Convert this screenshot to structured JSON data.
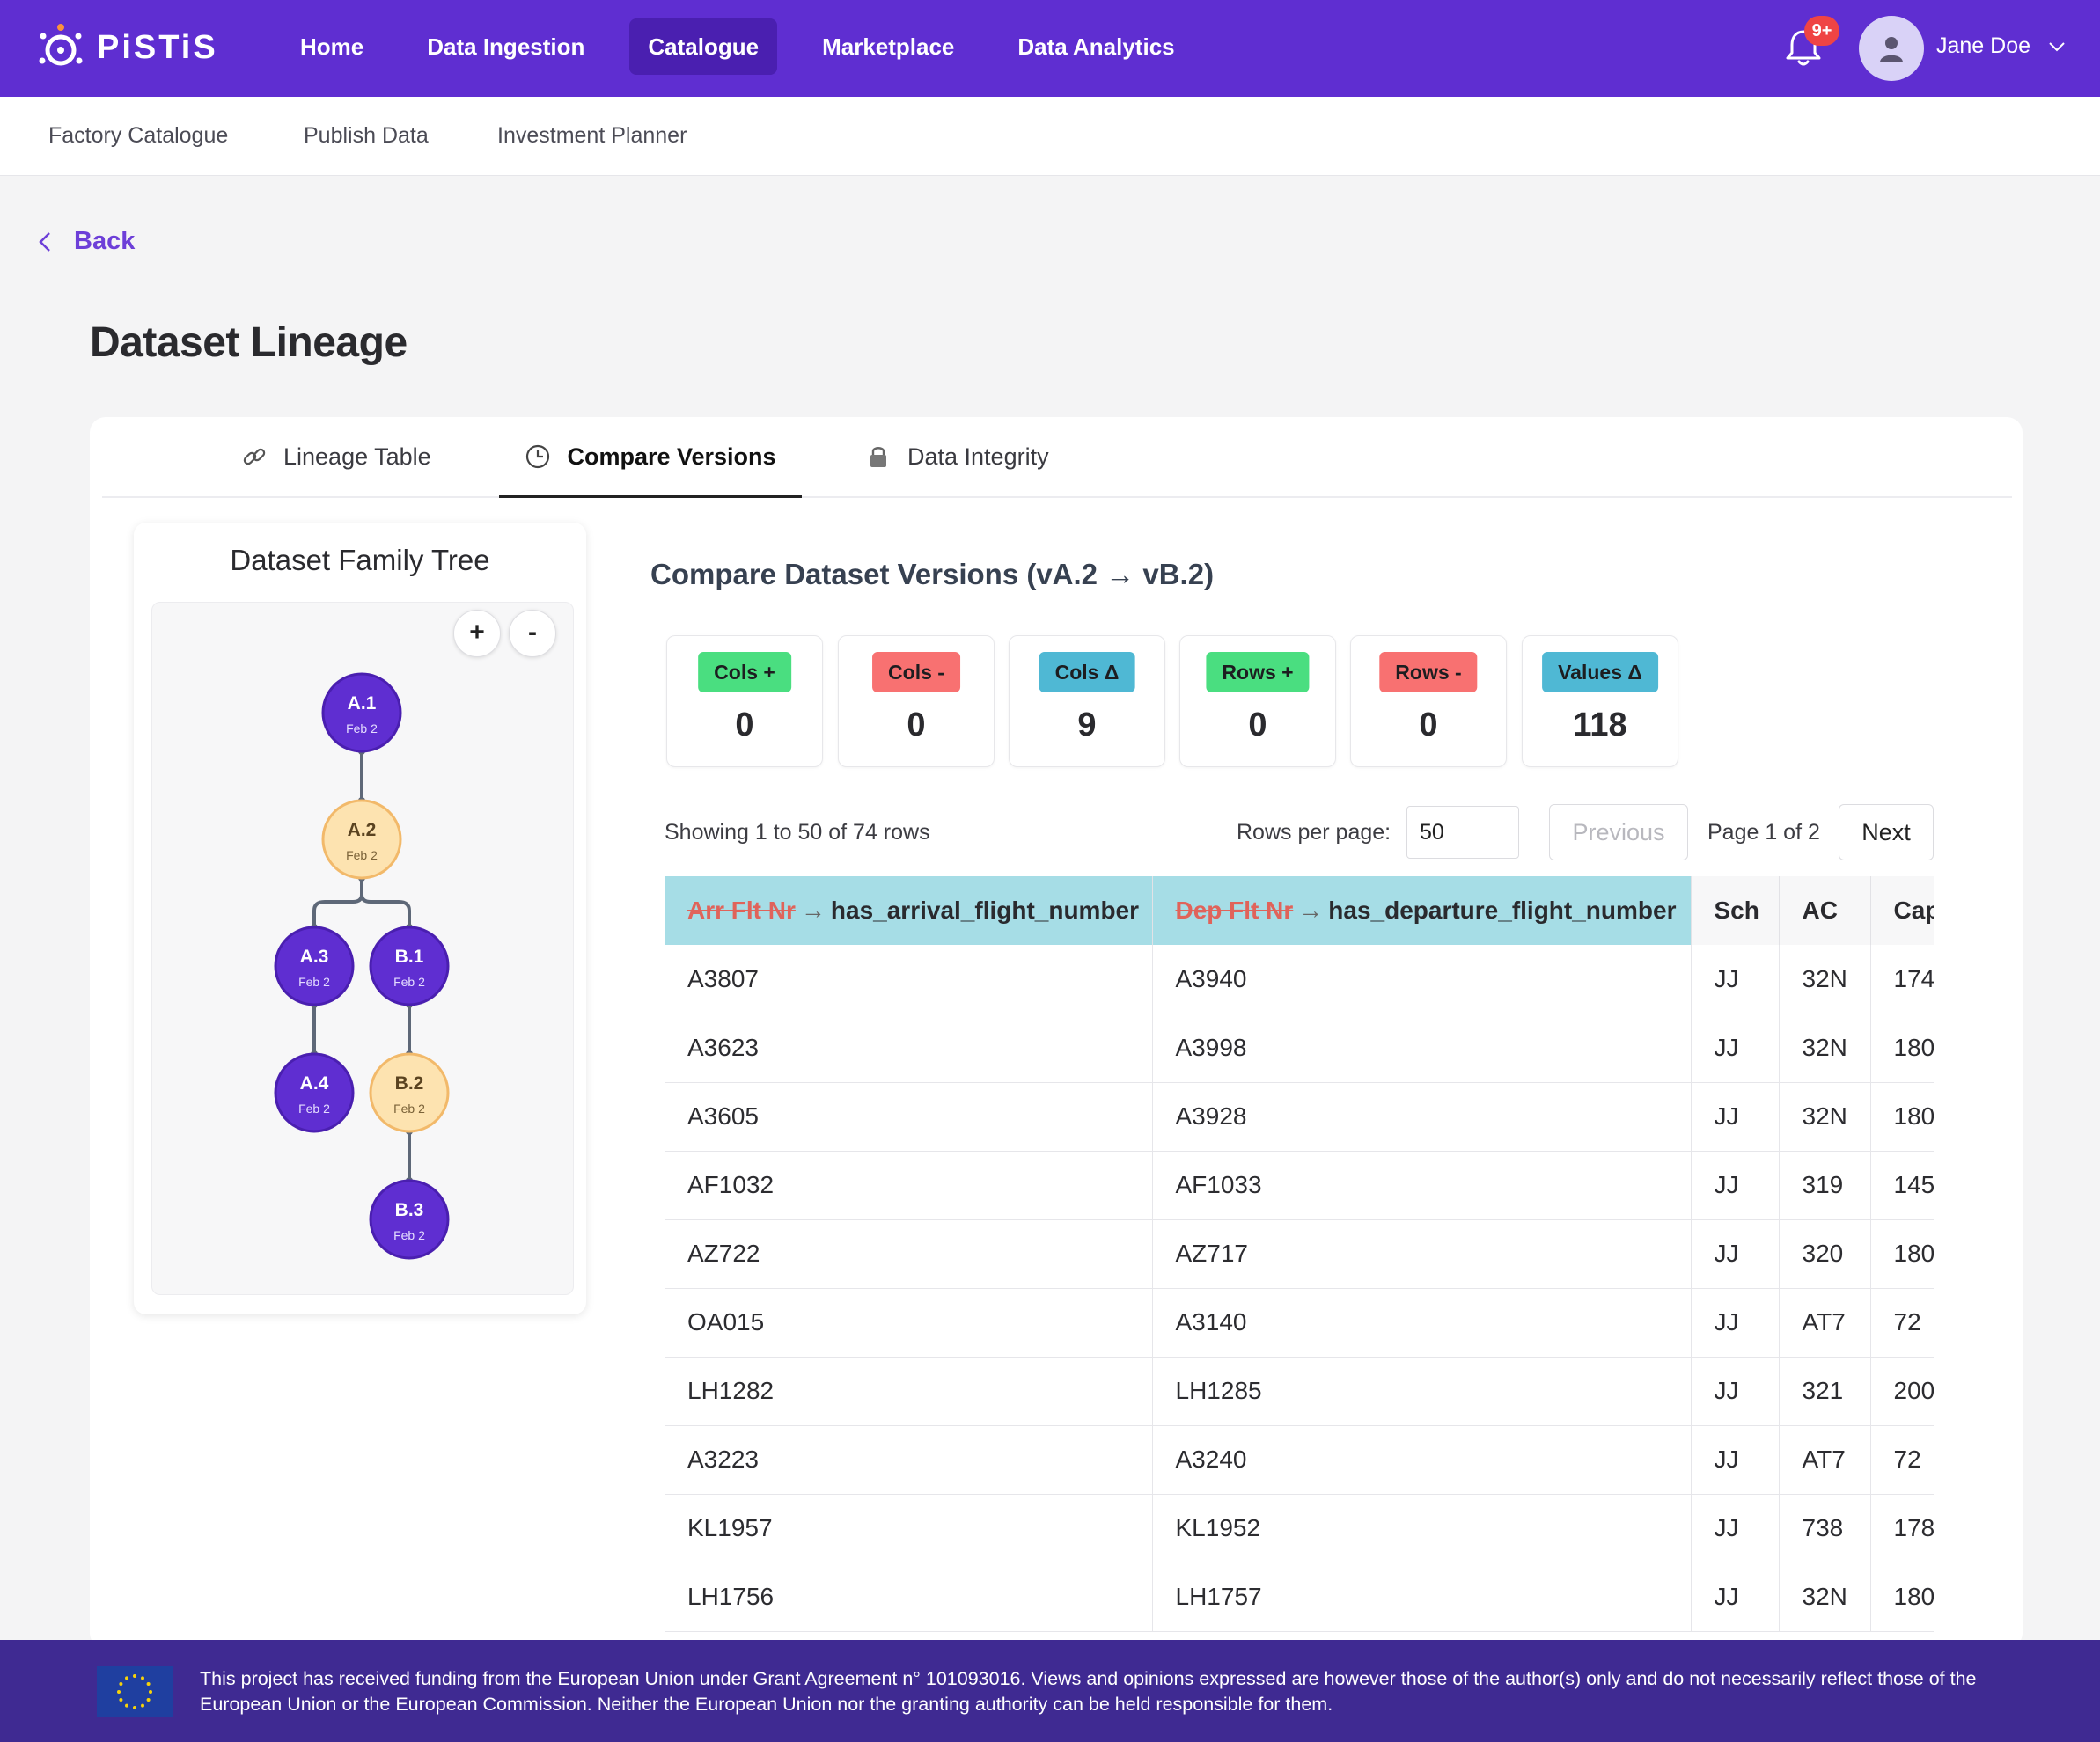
{
  "brand": {
    "name": "PiSTiS"
  },
  "nav": {
    "links": [
      "Home",
      "Data Ingestion",
      "Catalogue",
      "Marketplace",
      "Data Analytics"
    ],
    "active": "Catalogue",
    "notification_badge": "9+",
    "user_name": "Jane Doe"
  },
  "subnav": [
    "Factory Catalogue",
    "Publish Data",
    "Investment Planner"
  ],
  "back_label": "Back",
  "page_title": "Dataset Lineage",
  "tabs": [
    {
      "label": "Lineage Table",
      "icon": "link-icon"
    },
    {
      "label": "Compare Versions",
      "icon": "clock-icon",
      "active": true
    },
    {
      "label": "Data Integrity",
      "icon": "lock-icon"
    }
  ],
  "tree": {
    "title": "Dataset Family Tree",
    "zoom_in": "+",
    "zoom_out": "-",
    "nodes": [
      {
        "label": "A.1",
        "date": "Feb 2",
        "selected": false
      },
      {
        "label": "A.2",
        "date": "Feb 2",
        "selected": true
      },
      {
        "label": "A.3",
        "date": "Feb 2",
        "selected": false
      },
      {
        "label": "B.1",
        "date": "Feb 2",
        "selected": false
      },
      {
        "label": "A.4",
        "date": "Feb 2",
        "selected": false
      },
      {
        "label": "B.2",
        "date": "Feb 2",
        "selected": true
      },
      {
        "label": "B.3",
        "date": "Feb 2",
        "selected": false
      }
    ]
  },
  "compare": {
    "title": "Compare Dataset Versions (vA.2 → vB.2)",
    "stats": [
      {
        "label": "Cols +",
        "value": "0",
        "color": "#4ade80"
      },
      {
        "label": "Cols -",
        "value": "0",
        "color": "#f87171"
      },
      {
        "label": "Cols Δ",
        "value": "9",
        "color": "#4fb8d4"
      },
      {
        "label": "Rows +",
        "value": "0",
        "color": "#4ade80"
      },
      {
        "label": "Rows -",
        "value": "0",
        "color": "#f87171"
      },
      {
        "label": "Values Δ",
        "value": "118",
        "color": "#4fb8d4"
      }
    ],
    "showing": "Showing 1 to 50 of 74 rows",
    "rows_per_page_label": "Rows per page:",
    "rows_per_page": "50",
    "previous": "Previous",
    "page_info": "Page 1 of 2",
    "next": "Next"
  },
  "table": {
    "columns": [
      {
        "old": "Arr Flt Nr",
        "new": "has_arrival_flight_number",
        "changed": true
      },
      {
        "old": "Dep Flt Nr",
        "new": "has_departure_flight_number",
        "changed": true
      },
      {
        "old": "",
        "new": "Sch",
        "changed": false
      },
      {
        "old": "",
        "new": "AC",
        "changed": false
      },
      {
        "old": "",
        "new": "Cap",
        "changed": false
      }
    ],
    "rows": [
      [
        "A3807",
        "A3940",
        "JJ",
        "32N",
        "174"
      ],
      [
        "A3623",
        "A3998",
        "JJ",
        "32N",
        "180"
      ],
      [
        "A3605",
        "A3928",
        "JJ",
        "32N",
        "180"
      ],
      [
        "AF1032",
        "AF1033",
        "JJ",
        "319",
        "145"
      ],
      [
        "AZ722",
        "AZ717",
        "JJ",
        "320",
        "180"
      ],
      [
        "OA015",
        "A3140",
        "JJ",
        "AT7",
        "72"
      ],
      [
        "LH1282",
        "LH1285",
        "JJ",
        "321",
        "200"
      ],
      [
        "A3223",
        "A3240",
        "JJ",
        "AT7",
        "72"
      ],
      [
        "KL1957",
        "KL1952",
        "JJ",
        "738",
        "178"
      ],
      [
        "LH1756",
        "LH1757",
        "JJ",
        "32N",
        "180"
      ]
    ]
  },
  "footer": {
    "text": "This project has received funding from the European Union under Grant Agreement n° 101093016. Views and opinions expressed are however those of the author(s) only and do not necessarily reflect those of the European Union or the European Commission. Neither the European Union nor the granting authority can be held responsible for them."
  }
}
